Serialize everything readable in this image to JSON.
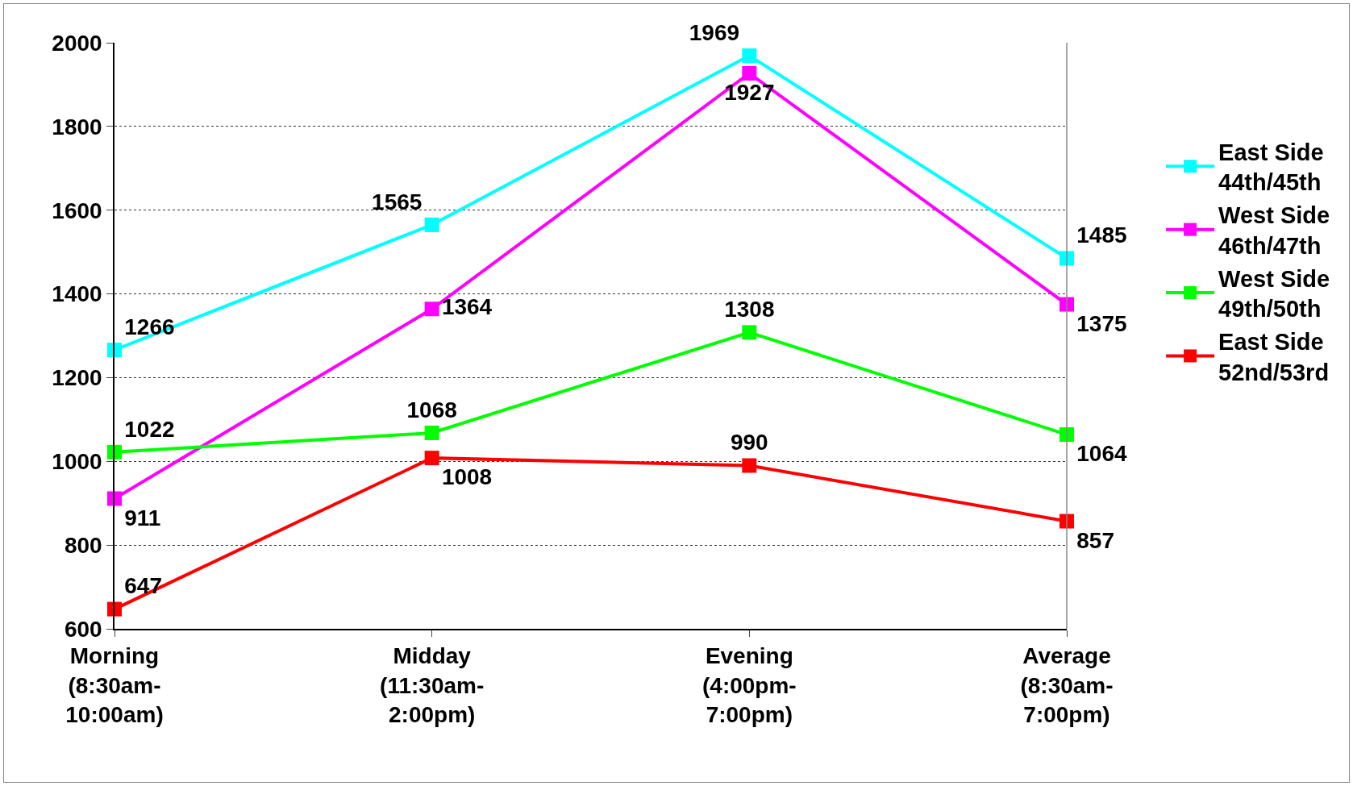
{
  "chart_data": {
    "type": "line",
    "categories": [
      "Morning\n(8:30am-\n10:00am)",
      "Midday\n(11:30am-\n2:00pm)",
      "Evening\n(4:00pm-\n7:00pm)",
      "Average\n(8:30am-\n7:00pm)"
    ],
    "series": [
      {
        "name": "East Side\n44th/45th",
        "color": "#00ffff",
        "values": [
          1266,
          1565,
          1969,
          1485
        ]
      },
      {
        "name": "West Side\n46th/47th",
        "color": "#ff00ff",
        "values": [
          911,
          1364,
          1927,
          1375
        ]
      },
      {
        "name": "West Side\n49th/50th",
        "color": "#00ff00",
        "values": [
          1022,
          1068,
          1308,
          1064
        ]
      },
      {
        "name": "East Side\n52nd/53rd",
        "color": "#ff0000",
        "values": [
          647,
          1008,
          990,
          857
        ]
      }
    ],
    "ylim": [
      600,
      2000
    ],
    "yticks": [
      600,
      800,
      1000,
      1200,
      1400,
      1600,
      1800,
      2000
    ],
    "grid": "y",
    "legend": "right",
    "marker": "square",
    "line_style": "solid",
    "data_labels": true
  }
}
